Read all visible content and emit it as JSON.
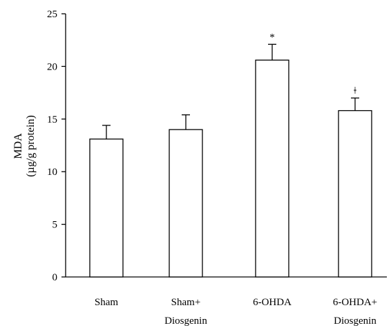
{
  "chart_data": {
    "type": "bar",
    "categories": [
      [
        "Sham"
      ],
      [
        "Sham+",
        "Diosgenin"
      ],
      [
        "6-OHDA"
      ],
      [
        "6-OHDA+",
        "Diosgenin"
      ]
    ],
    "values": [
      13.1,
      14.0,
      20.6,
      15.8
    ],
    "errors": [
      1.3,
      1.4,
      1.5,
      1.2
    ],
    "annotations": [
      "",
      "",
      "*",
      "ǂ"
    ],
    "title": "",
    "xlabel": "",
    "ylabel": [
      "MDA",
      "(µg/g protein)"
    ],
    "ylim": [
      0,
      25
    ],
    "yticks": [
      0,
      5,
      10,
      15,
      20,
      25
    ],
    "grid": false,
    "legend": "none",
    "colors": {
      "bar_fill": "#ffffff",
      "bar_stroke": "#000000",
      "axis": "#000000"
    }
  }
}
